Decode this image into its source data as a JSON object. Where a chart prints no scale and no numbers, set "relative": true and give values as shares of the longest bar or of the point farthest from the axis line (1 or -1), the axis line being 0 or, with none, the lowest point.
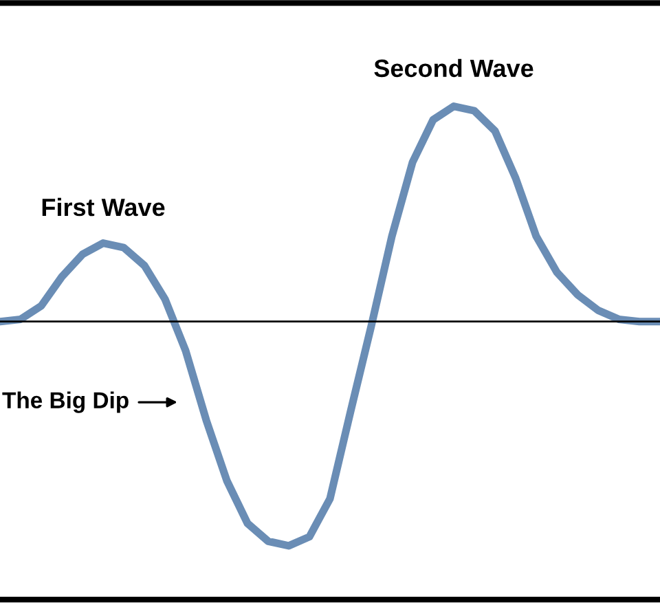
{
  "chart_data": {
    "type": "line",
    "relative": true,
    "categories": [
      null,
      null,
      null,
      null,
      null,
      null,
      null,
      null,
      null,
      null,
      null,
      null,
      null,
      null,
      null,
      null,
      null,
      null,
      null,
      null,
      null,
      null,
      null,
      null,
      null,
      null,
      null,
      null,
      null,
      null,
      null,
      null,
      null
    ],
    "series": [
      {
        "color": "#6a8db5",
        "values": [
          0,
          0.01,
          0.07,
          0.2,
          0.3,
          0.35,
          0.33,
          0.25,
          0.1,
          -0.13,
          -0.44,
          -0.71,
          -0.9,
          -0.98,
          -1,
          -0.96,
          -0.79,
          -0.4,
          -0.02,
          0.38,
          0.71,
          0.9,
          0.96,
          0.94,
          0.85,
          0.64,
          0.38,
          0.22,
          0.12,
          0.05,
          0.01,
          0,
          0
        ]
      }
    ],
    "annotations": [
      "First Wave",
      "Second Wave",
      "The Big Dip"
    ],
    "grid": false,
    "legend": false,
    "marker": "none",
    "line_style": "solid"
  }
}
